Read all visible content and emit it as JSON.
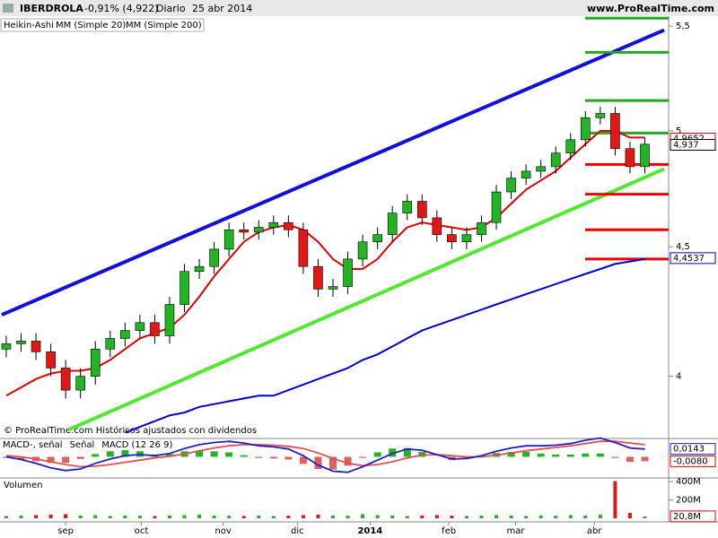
{
  "chart_data": [
    {
      "type": "candlestick",
      "title": "IBERDROLA",
      "subtitle": "-0,91% (4,922)",
      "period": "Diario",
      "date": "25 abr 2014",
      "source": "www.ProRealTime.com",
      "footnote": "© ProRealTime.com Históricos ajustados con dividendos",
      "series_label": "Heikin-Ashi",
      "up_color": "#22b422",
      "down_color": "#e01818",
      "log_scale": true,
      "open": [
        4.1,
        4.12,
        4.13,
        4.09,
        4.03,
        3.95,
        4.0,
        4.1,
        4.14,
        4.17,
        4.2,
        4.15,
        4.27,
        4.4,
        4.42,
        4.49,
        4.57,
        4.56,
        4.58,
        4.6,
        4.57,
        4.42,
        4.33,
        4.34,
        4.45,
        4.52,
        4.55,
        4.64,
        4.69,
        4.62,
        4.55,
        4.52,
        4.55,
        4.6,
        4.73,
        4.79,
        4.82,
        4.84,
        4.9,
        4.96,
        5.06,
        5.08,
        4.92,
        4.84
      ],
      "high": [
        4.15,
        4.16,
        4.16,
        4.12,
        4.06,
        4.03,
        4.13,
        4.17,
        4.2,
        4.23,
        4.23,
        4.3,
        4.43,
        4.45,
        4.52,
        4.6,
        4.6,
        4.61,
        4.63,
        4.63,
        4.6,
        4.45,
        4.37,
        4.48,
        4.55,
        4.58,
        4.67,
        4.72,
        4.72,
        4.65,
        4.58,
        4.58,
        4.63,
        4.76,
        4.82,
        4.85,
        4.87,
        4.93,
        4.99,
        5.09,
        5.11,
        5.11,
        4.95,
        4.97
      ],
      "low": [
        4.07,
        4.09,
        4.06,
        4.0,
        3.92,
        3.92,
        3.97,
        4.07,
        4.11,
        4.14,
        4.12,
        4.12,
        4.24,
        4.37,
        4.39,
        4.46,
        4.53,
        4.53,
        4.55,
        4.54,
        4.39,
        4.3,
        4.3,
        4.31,
        4.42,
        4.49,
        4.52,
        4.61,
        4.59,
        4.52,
        4.49,
        4.49,
        4.52,
        4.57,
        4.7,
        4.76,
        4.79,
        4.81,
        4.87,
        4.93,
        5.03,
        4.89,
        4.81,
        4.81
      ],
      "close": [
        4.12,
        4.13,
        4.09,
        4.03,
        3.95,
        4.0,
        4.1,
        4.14,
        4.17,
        4.2,
        4.15,
        4.27,
        4.4,
        4.42,
        4.49,
        4.57,
        4.56,
        4.58,
        4.6,
        4.57,
        4.42,
        4.33,
        4.34,
        4.45,
        4.52,
        4.55,
        4.64,
        4.69,
        4.62,
        4.55,
        4.52,
        4.55,
        4.6,
        4.73,
        4.79,
        4.82,
        4.84,
        4.9,
        4.96,
        5.06,
        5.08,
        4.92,
        4.84,
        4.94
      ],
      "xlim": [
        -0.3,
        44.3
      ],
      "ylim": [
        3.78,
        5.55
      ],
      "yticks": [
        {
          "value": 5.5,
          "label": "5,5"
        },
        {
          "value": 5,
          "label": "5"
        },
        {
          "value": 4.5,
          "label": "4,5"
        },
        {
          "value": 4,
          "label": "4"
        }
      ],
      "xticks": [
        {
          "value": 4.0,
          "label": "sep"
        },
        {
          "value": 9.1,
          "label": "oct"
        },
        {
          "value": 14.6,
          "label": "nov"
        },
        {
          "value": 19.6,
          "label": "dic"
        },
        {
          "value": 24.5,
          "label": "2014"
        },
        {
          "value": 29.8,
          "label": "feb"
        },
        {
          "value": 34.3,
          "label": "mar"
        },
        {
          "value": 39.6,
          "label": "abr"
        }
      ],
      "overlays": [
        {
          "name": "MM (Simple 20)",
          "color": "#e00000",
          "values": [
            3.93,
            3.96,
            3.99,
            4.01,
            4.02,
            4.02,
            4.03,
            4.06,
            4.1,
            4.14,
            4.16,
            4.18,
            4.23,
            4.3,
            4.38,
            4.45,
            4.52,
            4.56,
            4.58,
            4.59,
            4.57,
            4.52,
            4.45,
            4.41,
            4.41,
            4.45,
            4.52,
            4.58,
            4.6,
            4.59,
            4.58,
            4.57,
            4.58,
            4.62,
            4.68,
            4.74,
            4.78,
            4.82,
            4.88,
            4.94,
            5.0,
            5.0,
            4.97,
            4.97
          ]
        },
        {
          "name": "MM (Simple 200)",
          "color": "#0000c8",
          "values": [
            null,
            null,
            null,
            null,
            null,
            null,
            null,
            null,
            3.8,
            3.82,
            3.84,
            3.86,
            3.87,
            3.89,
            3.9,
            3.91,
            3.92,
            3.93,
            3.93,
            3.95,
            3.97,
            3.99,
            4.01,
            4.03,
            4.06,
            4.08,
            4.11,
            4.14,
            4.17,
            4.19,
            4.21,
            4.23,
            4.25,
            4.27,
            4.29,
            4.31,
            4.33,
            4.35,
            4.37,
            4.39,
            4.41,
            4.43,
            4.44,
            4.45
          ]
        }
      ],
      "trendlines": [
        {
          "color": "#1010d8",
          "x": [
            -0.3,
            44.3
          ],
          "y": [
            4.23,
            5.48
          ]
        },
        {
          "color": "#50e830",
          "x": [
            4.2,
            44.3
          ],
          "y": [
            3.81,
            4.83
          ]
        }
      ],
      "levels": [
        {
          "value": 5.54,
          "color": "#22a822"
        },
        {
          "value": 5.37,
          "color": "#22a822"
        },
        {
          "value": 5.14,
          "color": "#22a822"
        },
        {
          "value": 4.99,
          "color": "#22a822"
        },
        {
          "value": 4.85,
          "color": "#ee0000"
        },
        {
          "value": 4.72,
          "color": "#ee0000"
        },
        {
          "value": 4.57,
          "color": "#ee0000"
        },
        {
          "value": 4.45,
          "color": "#ee0000"
        }
      ],
      "markers": [
        {
          "value": 4.9652,
          "label": "4,9652",
          "color": "#e00000"
        },
        {
          "value": 4.937,
          "label": "4,937",
          "color": "#000000"
        },
        {
          "value": 4.4537,
          "label": "4,4537",
          "color": "#0000c8"
        }
      ]
    },
    {
      "type": "macd",
      "ylim": [
        -0.035,
        0.03
      ],
      "pos_color": "#22b422",
      "neg_color": "#e06060",
      "series": [
        {
          "name": "MACD-, señal",
          "color": "#808080",
          "kind": "bar",
          "values": [
            -0.002,
            -0.005,
            -0.008,
            -0.011,
            -0.011,
            -0.004,
            0.005,
            0.01,
            0.012,
            0.01,
            0.004,
            0.005,
            0.01,
            0.011,
            0.01,
            0.008,
            0.003,
            -0.002,
            -0.003,
            -0.005,
            -0.013,
            -0.022,
            -0.023,
            -0.016,
            -0.002,
            0.008,
            0.015,
            0.016,
            0.009,
            0.0,
            -0.006,
            -0.003,
            0.002,
            0.007,
            0.009,
            0.009,
            0.006,
            0.004,
            0.004,
            0.006,
            0.006,
            -0.002,
            -0.009,
            -0.008
          ]
        },
        {
          "name": "Señal",
          "color": "#e05050",
          "kind": "line",
          "values": [
            0.002,
            0.0,
            -0.004,
            -0.009,
            -0.014,
            -0.018,
            -0.017,
            -0.014,
            -0.01,
            -0.006,
            -0.002,
            0.001,
            0.005,
            0.011,
            0.016,
            0.02,
            0.022,
            0.022,
            0.021,
            0.019,
            0.015,
            0.007,
            -0.003,
            -0.012,
            -0.016,
            -0.014,
            -0.009,
            -0.002,
            0.003,
            0.004,
            0.002,
            0.0,
            0.0,
            0.003,
            0.007,
            0.011,
            0.014,
            0.017,
            0.02,
            0.024,
            0.028,
            0.028,
            0.025,
            0.022
          ]
        },
        {
          "name": "MACD (12 26 9)",
          "color": "#2020c0",
          "kind": "line",
          "values": [
            0.0,
            -0.005,
            -0.012,
            -0.02,
            -0.025,
            -0.022,
            -0.012,
            -0.004,
            0.002,
            0.004,
            0.002,
            0.006,
            0.015,
            0.022,
            0.026,
            0.028,
            0.025,
            0.02,
            0.018,
            0.014,
            0.002,
            -0.015,
            -0.026,
            -0.028,
            -0.018,
            -0.006,
            0.006,
            0.014,
            0.012,
            0.004,
            -0.004,
            -0.003,
            0.002,
            0.01,
            0.016,
            0.02,
            0.02,
            0.021,
            0.024,
            0.03,
            0.034,
            0.026,
            0.016,
            0.014
          ]
        }
      ],
      "markers": [
        {
          "value": 0.0143,
          "label": "0,0143",
          "color": "#2020c0"
        },
        {
          "value": -0.008,
          "label": "-0,0080",
          "color": "#e00000"
        }
      ]
    },
    {
      "type": "volume",
      "title": "Volumen",
      "color": "#22b422",
      "down_color": "#e01818",
      "values": [
        25000000,
        30000000,
        35000000,
        40000000,
        45000000,
        30000000,
        35000000,
        25000000,
        30000000,
        28000000,
        25000000,
        30000000,
        35000000,
        40000000,
        30000000,
        28000000,
        25000000,
        30000000,
        25000000,
        28000000,
        35000000,
        40000000,
        30000000,
        28000000,
        45000000,
        35000000,
        30000000,
        25000000,
        30000000,
        35000000,
        28000000,
        25000000,
        30000000,
        35000000,
        30000000,
        25000000,
        30000000,
        28000000,
        35000000,
        30000000,
        40000000,
        405000000,
        60000000,
        21000000
      ],
      "ylim": [
        0,
        430000000
      ],
      "yticks": [
        {
          "value": 400000000,
          "label": "400M"
        },
        {
          "value": 200000000,
          "label": "200M"
        }
      ],
      "markers": [
        {
          "value": 20800000,
          "label": "20,8M",
          "color": "#e00000"
        }
      ]
    }
  ]
}
